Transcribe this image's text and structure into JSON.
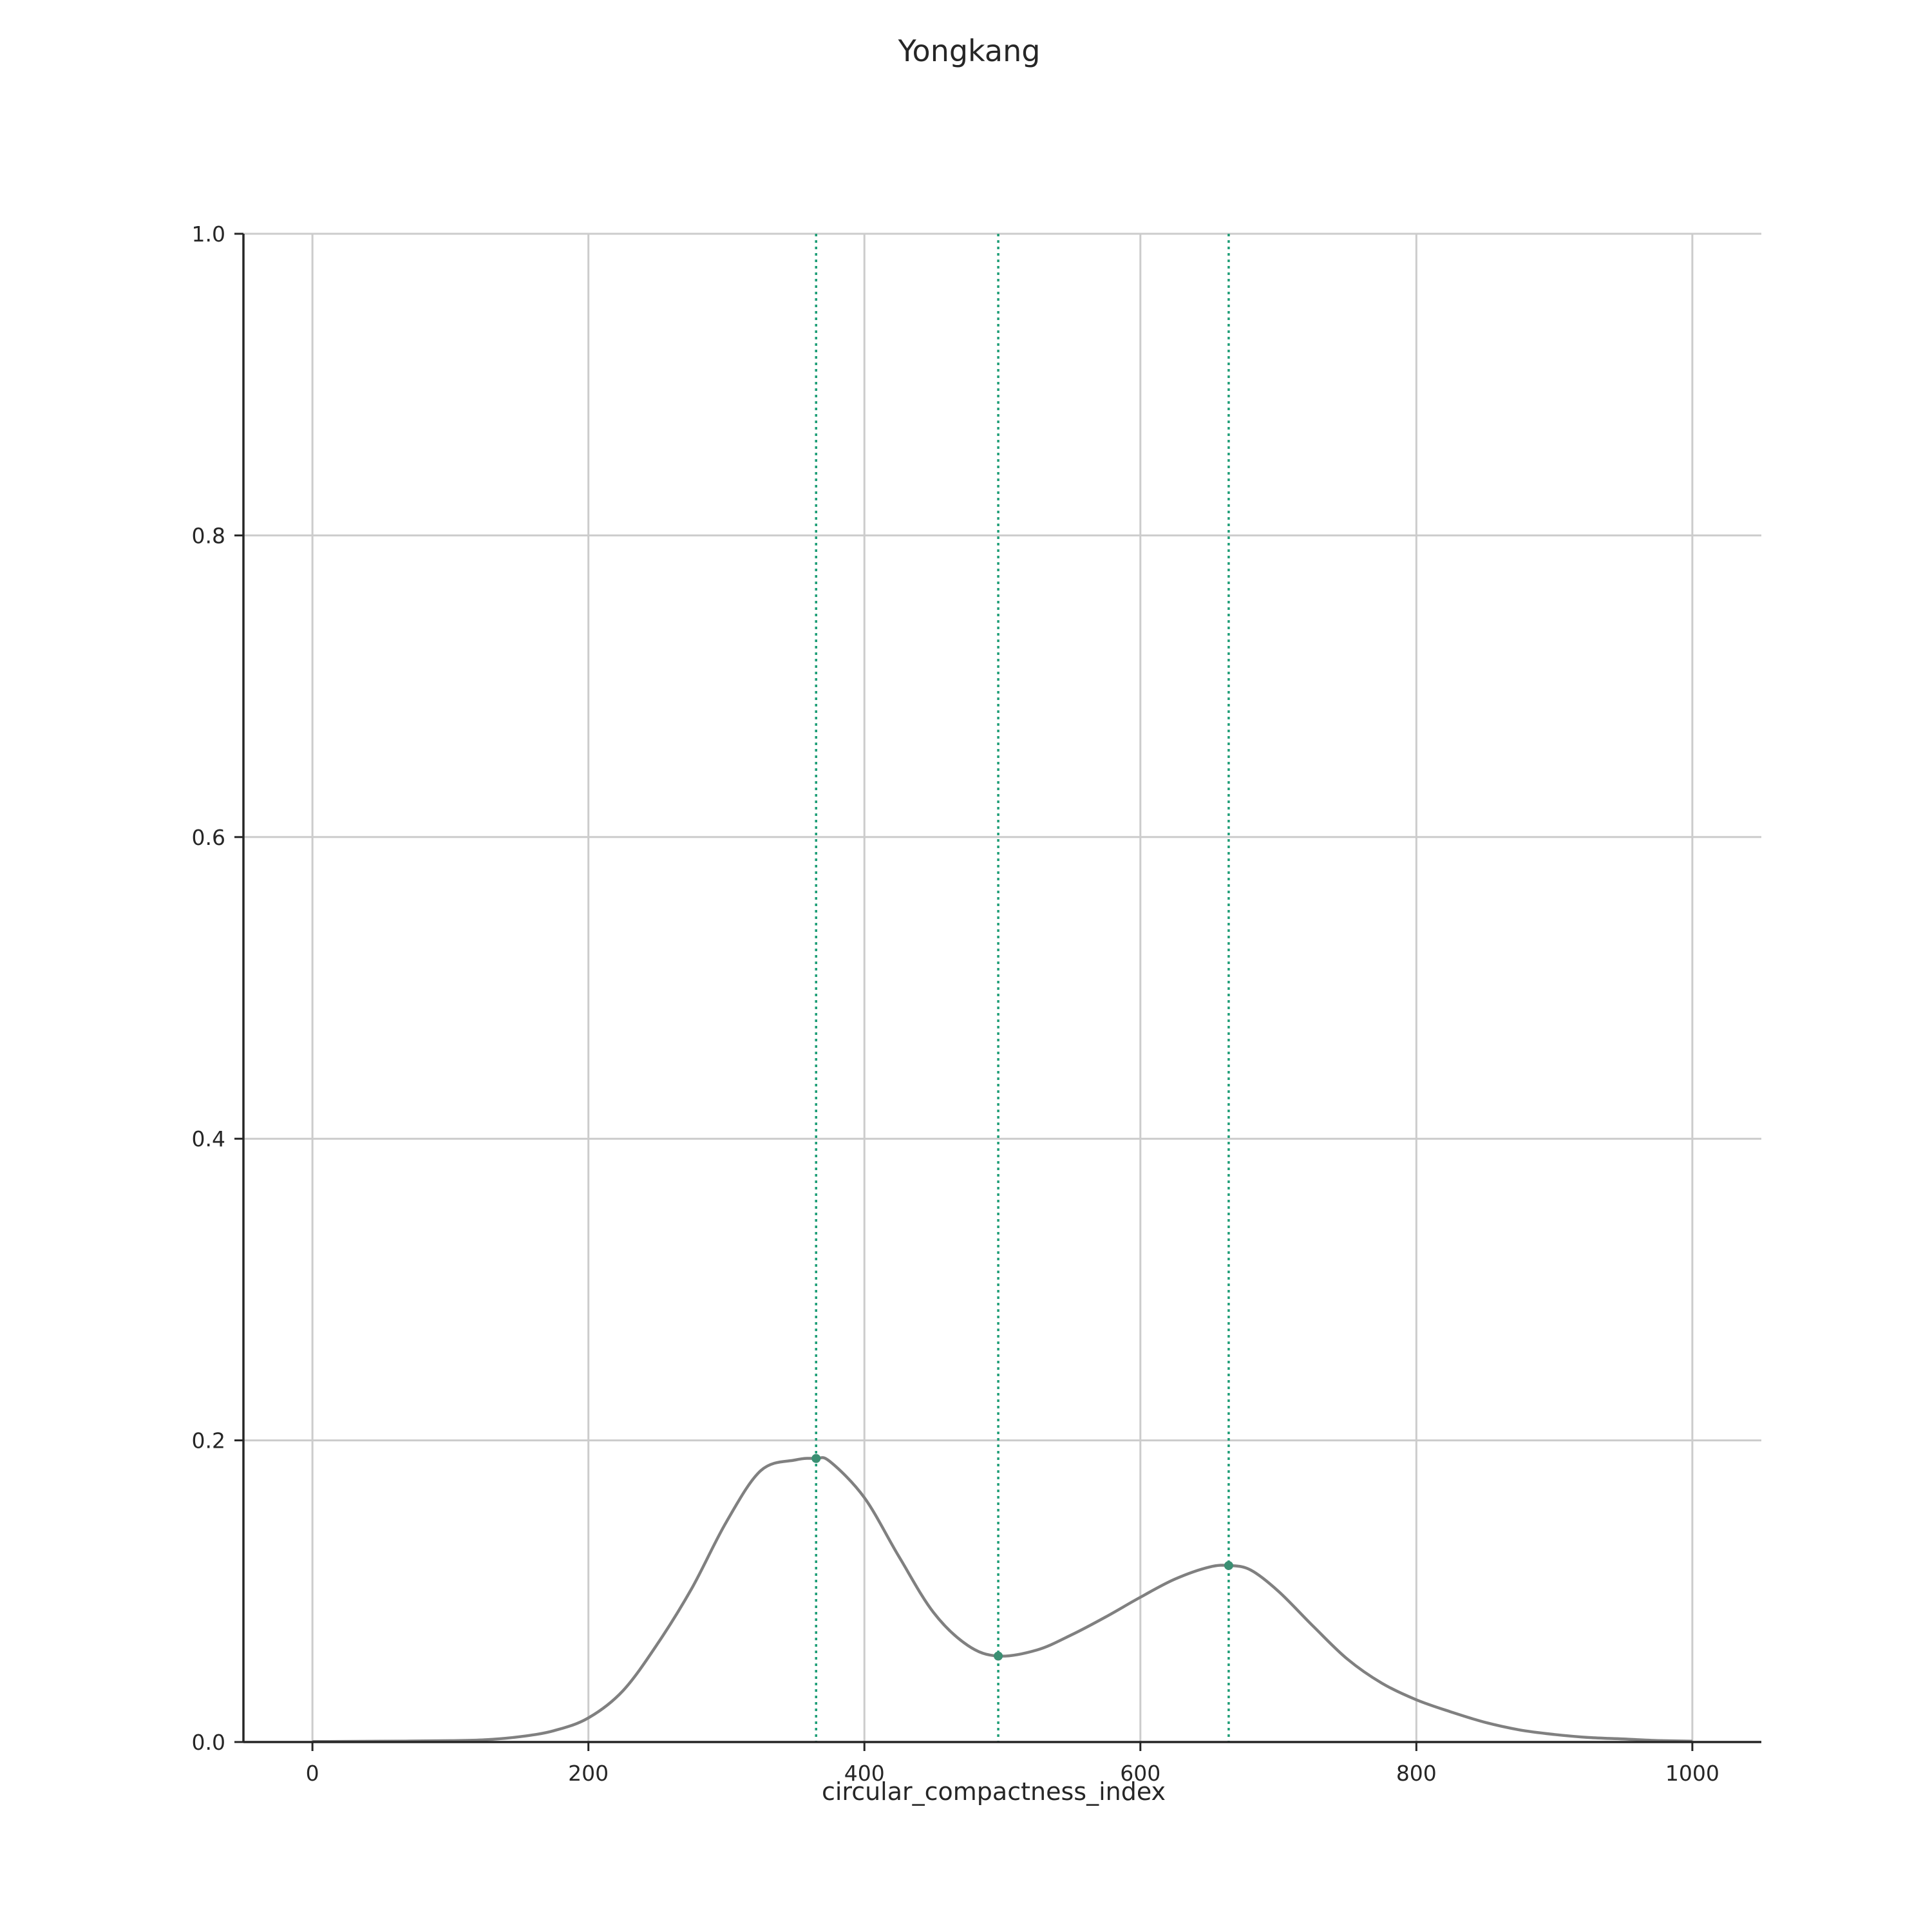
{
  "chart_data": {
    "type": "line",
    "title": "Yongkang",
    "xlabel": "circular_compactness_index",
    "ylabel": "",
    "xlim": [
      -50,
      1050
    ],
    "ylim": [
      0,
      1.0
    ],
    "xticks": [
      0,
      200,
      400,
      600,
      800,
      1000
    ],
    "yticks": [
      0.0,
      0.2,
      0.4,
      0.6,
      0.8,
      1.0
    ],
    "xtick_labels": [
      "0",
      "200",
      "400",
      "600",
      "800",
      "1000"
    ],
    "ytick_labels": [
      "0.0",
      "0.2",
      "0.4",
      "0.6",
      "0.8",
      "1.0"
    ],
    "grid": true,
    "series": [
      {
        "color": "#808080",
        "x": [
          0,
          50,
          100,
          125,
          150,
          175,
          200,
          225,
          250,
          275,
          300,
          325,
          350,
          365,
          375,
          400,
          425,
          450,
          475,
          497,
          525,
          550,
          575,
          600,
          625,
          650,
          665,
          680,
          700,
          725,
          750,
          775,
          800,
          825,
          850,
          875,
          900,
          925,
          950,
          975,
          1000
        ],
        "y": [
          0.0003,
          0.0005,
          0.0009,
          0.0015,
          0.0035,
          0.0075,
          0.016,
          0.034,
          0.065,
          0.102,
          0.146,
          0.18,
          0.187,
          0.188,
          0.186,
          0.162,
          0.123,
          0.086,
          0.064,
          0.057,
          0.061,
          0.071,
          0.083,
          0.096,
          0.108,
          0.116,
          0.117,
          0.114,
          0.1,
          0.077,
          0.055,
          0.039,
          0.028,
          0.02,
          0.013,
          0.008,
          0.005,
          0.003,
          0.002,
          0.001,
          0.0005
        ]
      }
    ],
    "vlines": [
      {
        "x": 365,
        "color": "#1f9e77",
        "style": "dotted"
      },
      {
        "x": 497,
        "color": "#1f9e77",
        "style": "dotted"
      },
      {
        "x": 664,
        "color": "#1f9e77",
        "style": "dotted"
      }
    ],
    "markers": [
      {
        "x": 365,
        "y": 0.188,
        "color": "#3b8f73"
      },
      {
        "x": 497,
        "y": 0.057,
        "color": "#3b8f73"
      },
      {
        "x": 664,
        "y": 0.117,
        "color": "#3b8f73"
      }
    ]
  }
}
